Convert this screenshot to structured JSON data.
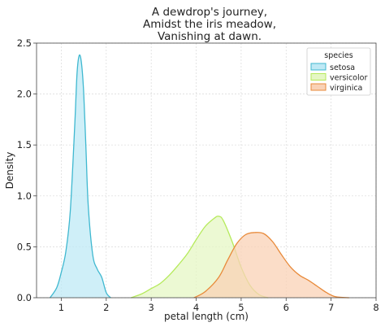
{
  "chart_data": {
    "type": "area",
    "title_lines": [
      "A dewdrop's journey,",
      "Amidst the iris meadow,",
      "Vanishing at dawn."
    ],
    "xlabel": "petal length (cm)",
    "ylabel": "Density",
    "xlim": [
      0.45,
      8.0
    ],
    "ylim": [
      0,
      2.5
    ],
    "xticks": [
      1,
      2,
      3,
      4,
      5,
      6,
      7,
      8
    ],
    "yticks": [
      0.0,
      0.5,
      1.0,
      1.5,
      2.0,
      2.5
    ],
    "grid": true,
    "legend": {
      "title": "species",
      "position": "top-right"
    },
    "series": [
      {
        "name": "setosa",
        "line_color": "#3fb8d0",
        "fill_color": "#bfe9f5",
        "x": [
          0.75,
          0.9,
          1.0,
          1.1,
          1.2,
          1.3,
          1.35,
          1.4,
          1.45,
          1.5,
          1.55,
          1.6,
          1.7,
          1.8,
          1.9,
          2.0,
          2.1
        ],
        "y": [
          0.0,
          0.1,
          0.25,
          0.45,
          0.85,
          1.7,
          2.2,
          2.38,
          2.3,
          2.0,
          1.45,
          0.9,
          0.42,
          0.28,
          0.2,
          0.05,
          0.0
        ]
      },
      {
        "name": "versicolor",
        "line_color": "#b5ea5b",
        "fill_color": "#e5f7c4",
        "x": [
          2.55,
          2.8,
          3.0,
          3.2,
          3.4,
          3.6,
          3.8,
          4.0,
          4.2,
          4.4,
          4.5,
          4.6,
          4.8,
          5.0,
          5.2,
          5.4,
          5.6
        ],
        "y": [
          0.0,
          0.04,
          0.09,
          0.14,
          0.22,
          0.32,
          0.43,
          0.57,
          0.7,
          0.78,
          0.8,
          0.76,
          0.55,
          0.3,
          0.12,
          0.03,
          0.0
        ]
      },
      {
        "name": "virginica",
        "line_color": "#e88a3a",
        "fill_color": "#f9d2b6",
        "x": [
          3.95,
          4.2,
          4.5,
          4.7,
          4.9,
          5.1,
          5.3,
          5.5,
          5.7,
          5.9,
          6.1,
          6.3,
          6.5,
          6.7,
          6.9,
          7.1,
          7.4
        ],
        "y": [
          0.0,
          0.06,
          0.2,
          0.37,
          0.53,
          0.62,
          0.64,
          0.63,
          0.55,
          0.42,
          0.3,
          0.22,
          0.17,
          0.11,
          0.05,
          0.01,
          0.0
        ]
      }
    ]
  }
}
